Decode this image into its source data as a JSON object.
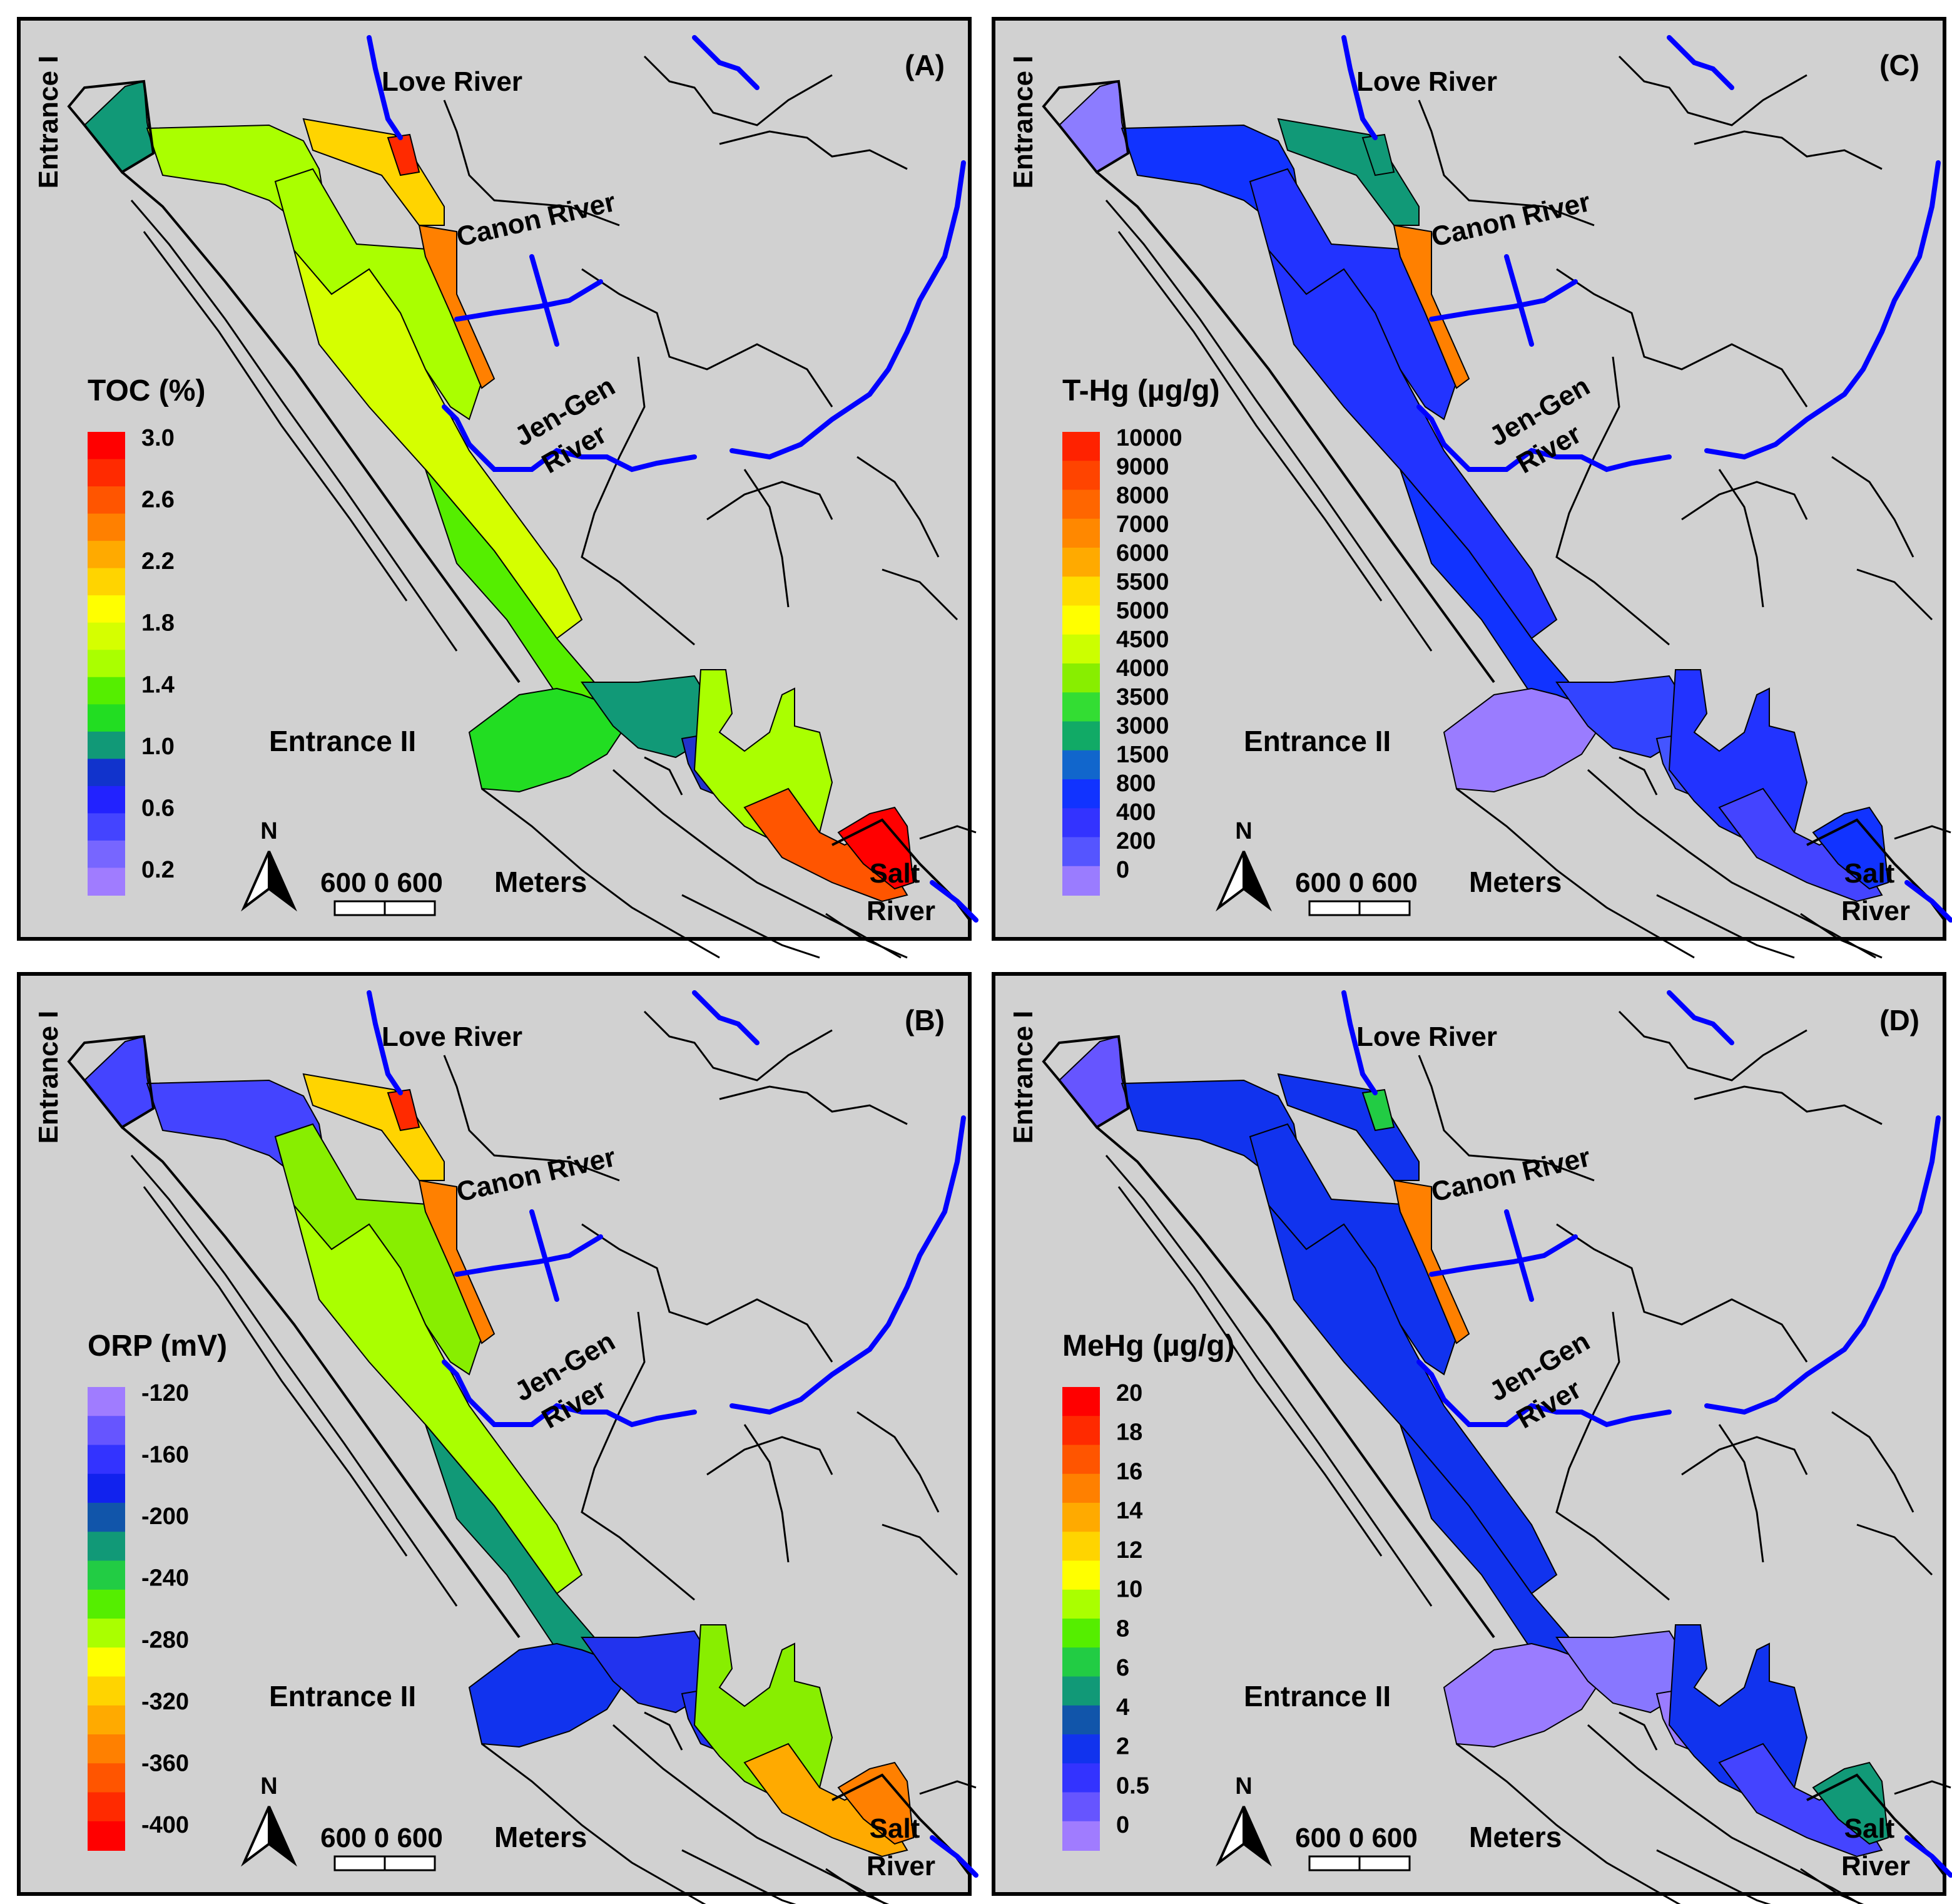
{
  "panels": [
    {
      "id": "A",
      "label": "(A)",
      "legend": {
        "title": "TOC (%)",
        "ticks": [
          "3.0",
          "2.6",
          "2.2",
          "1.8",
          "1.4",
          "1.0",
          "0.6",
          "0.2"
        ],
        "colors": [
          "#ff0000",
          "#ff2a00",
          "#ff5500",
          "#ff8000",
          "#ffaa00",
          "#ffd400",
          "#ffff00",
          "#d5ff00",
          "#aaff00",
          "#55ee00",
          "#22dd22",
          "#119977",
          "#1133cc",
          "#2222ff",
          "#4444ff",
          "#7766ff",
          "#a07cff"
        ]
      },
      "zones": {
        "entrance1": "#119977",
        "northBasin": "#aaff00",
        "loveArm": "#ffd400",
        "loveArmTip": "#ff2a00",
        "canonArm": "#ff8000",
        "mainChannel": "#aaff00",
        "midChannel": "#d5ff00",
        "lowerChannel": "#55ee00",
        "entrance2": "#22dd22",
        "hub": "#119977",
        "hubCore": "#2233cc",
        "southChannel": "#ff5500",
        "southTip": "#ff0000",
        "docks": "#aaff00"
      }
    },
    {
      "id": "C",
      "label": "(C)",
      "legend": {
        "title": "T-Hg (µg/g)",
        "ticks": [
          "10000",
          "9000",
          "8000",
          "7000",
          "6000",
          "5500",
          "5000",
          "4500",
          "4000",
          "3500",
          "3000",
          "1500",
          "800",
          "400",
          "200",
          "0"
        ],
        "colors": [
          "#ff2200",
          "#ff4400",
          "#ff6600",
          "#ff8800",
          "#ffaa00",
          "#ffdd00",
          "#ffff00",
          "#ccff00",
          "#88ee00",
          "#33dd33",
          "#11aa66",
          "#1166cc",
          "#1133ff",
          "#3333ff",
          "#5555ff",
          "#9a7cff"
        ]
      },
      "zones": {
        "entrance1": "#8c7cff",
        "northBasin": "#1133ff",
        "loveArm": "#119977",
        "loveArmTip": "#119977",
        "canonArm": "#ff8000",
        "mainChannel": "#2233ff",
        "midChannel": "#2233ff",
        "lowerChannel": "#1133ff",
        "entrance2": "#9a7cff",
        "hub": "#3344ff",
        "hubCore": "#4455ff",
        "southChannel": "#4444ff",
        "southTip": "#1133ff",
        "docks": "#2233ff"
      }
    },
    {
      "id": "B",
      "label": "(B)",
      "legend": {
        "title": "ORP (mV)",
        "ticks": [
          "-120",
          "-160",
          "-200",
          "-240",
          "-280",
          "-320",
          "-360",
          "-400"
        ],
        "colors": [
          "#a07cff",
          "#6655ff",
          "#3333ff",
          "#1122ee",
          "#1155aa",
          "#119977",
          "#22cc44",
          "#55ee00",
          "#aaff00",
          "#ffff00",
          "#ffd400",
          "#ffaa00",
          "#ff8000",
          "#ff5500",
          "#ff2a00",
          "#ff0000"
        ]
      },
      "zones": {
        "entrance1": "#4444ff",
        "northBasin": "#4444ff",
        "loveArm": "#ffd400",
        "loveArmTip": "#ff2a00",
        "canonArm": "#ff8000",
        "mainChannel": "#88ee00",
        "midChannel": "#aaff00",
        "lowerChannel": "#119977",
        "entrance2": "#1133ee",
        "hub": "#2233ee",
        "hubCore": "#2233ee",
        "southChannel": "#ffaa00",
        "southTip": "#ff8000",
        "docks": "#88ee00"
      }
    },
    {
      "id": "D",
      "label": "(D)",
      "legend": {
        "title": "MeHg (µg/g)",
        "ticks": [
          "20",
          "18",
          "16",
          "14",
          "12",
          "10",
          "8",
          "6",
          "4",
          "2",
          "0.5",
          "0"
        ],
        "colors": [
          "#ff0000",
          "#ff2a00",
          "#ff5500",
          "#ff8000",
          "#ffaa00",
          "#ffd400",
          "#ffff00",
          "#aaff00",
          "#55ee00",
          "#22cc44",
          "#119977",
          "#1155aa",
          "#1133ee",
          "#3333ff",
          "#6655ff",
          "#a07cff"
        ]
      },
      "zones": {
        "entrance1": "#6655ff",
        "northBasin": "#1133ee",
        "loveArm": "#1133ee",
        "loveArmTip": "#22cc44",
        "canonArm": "#ff8000",
        "mainChannel": "#1133ee",
        "midChannel": "#1133ee",
        "lowerChannel": "#1133ee",
        "entrance2": "#9a7cff",
        "hub": "#8877ff",
        "hubCore": "#9a7cff",
        "southChannel": "#4444ff",
        "southTip": "#119977",
        "docks": "#1133ee"
      }
    }
  ],
  "places": {
    "entrance_1": "Entrance I",
    "entrance_2": "Entrance II",
    "love_river": "Love River",
    "canon_river": "Canon River",
    "jengen_line1": "Jen-Gen",
    "jengen_line2": "River",
    "salt_line1": "Salt",
    "salt_line2": "River"
  },
  "scale_bar": {
    "labels": "600   0   600",
    "unit": "Meters"
  },
  "north_arrow": {
    "label": "N"
  },
  "colors": {
    "land": "#d1d1d1",
    "river": "#0000ff",
    "frame": "#000000"
  }
}
